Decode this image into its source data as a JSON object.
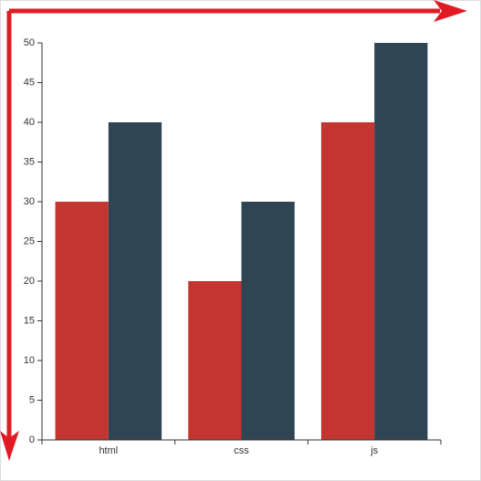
{
  "chart_data": {
    "type": "bar",
    "categories": [
      "html",
      "css",
      "js"
    ],
    "series": [
      {
        "color": "#c23531",
        "values": [
          30,
          20,
          40
        ]
      },
      {
        "color": "#2f4554",
        "values": [
          40,
          30,
          50
        ]
      }
    ],
    "ylim": [
      0,
      50
    ],
    "yticks": [
      0,
      5,
      10,
      15,
      20,
      25,
      30,
      35,
      40,
      45,
      50
    ]
  }
}
